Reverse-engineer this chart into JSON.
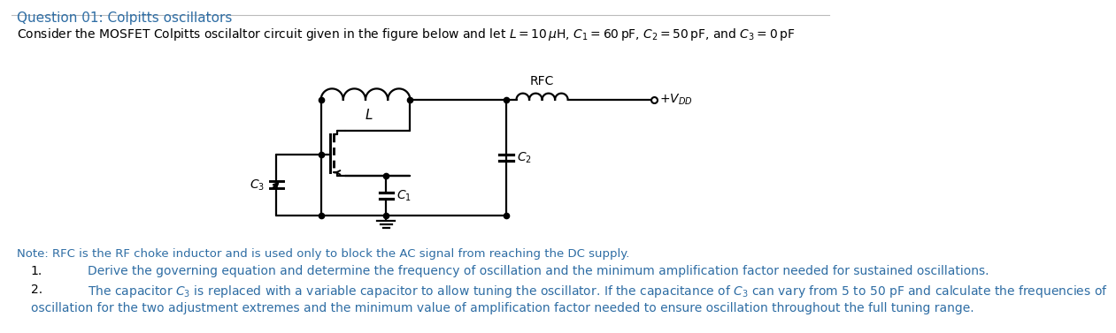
{
  "title": "Question 01: Colpitts oscillators",
  "note": "Note: RFC is the RF choke inductor and is used only to block the AC signal from reaching the DC supply.",
  "item1": "Derive the governing equation and determine the frequency of oscillation and the minimum amplification factor needed for sustained oscillations.",
  "item2_line1": "The capacitor $C_3$ is replaced with a variable capacitor to allow tuning the oscillator. If the capacitance of $C_3$ can vary from 5 to 50 pF and calculate the frequencies of",
  "item2_line2": "oscillation for the two adjustment extremes and the minimum value of amplification factor needed to ensure oscillation throughout the full tuning range.",
  "bg_color": "#ffffff",
  "text_color": "#000000",
  "circuit_color": "#000000",
  "title_color": "#2e6da4",
  "note_color": "#2e6da4",
  "items_color": "#2e6da4"
}
